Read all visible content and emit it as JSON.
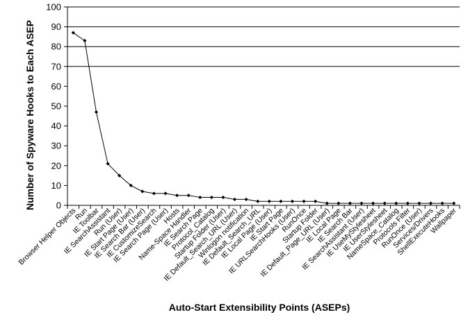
{
  "chart_data": {
    "type": "line",
    "title": "",
    "xlabel": "Auto-Start Extensibility Points (ASEPs)",
    "ylabel": "Number of Spyware Hooks to Each ASEP",
    "ylim": [
      0,
      100
    ],
    "yticks": [
      0,
      10,
      20,
      30,
      40,
      50,
      60,
      70,
      80,
      90,
      100
    ],
    "grid": "horizontal gridlines at 70, 80, 90, 100",
    "legend": "none",
    "colors": {
      "line": "#000000",
      "marker": "#000000"
    },
    "categories": [
      "Browser Helper Objects",
      "Run",
      "IE Toolbar",
      "IE SearchAssistant",
      "Run (User)",
      "IE Start Page (User)",
      "IE Search Bar (User)",
      "IE CustomizeSearch",
      "IE Search Page (User)",
      "Hosts",
      "Name-Space Handler",
      "IE Search Page",
      "Protocol_Catalog",
      "Startup Folder (User)",
      "IE Default_Search_URL (User)",
      "Winlogon notification",
      "IE Default_Search_URL",
      "IE Local Page (User)",
      "IE Start Page",
      "IE URLSearchHooks (User)",
      "RunOnce",
      "Startup Folder",
      "IE Default_Page_URL (User)",
      "IE Local Page",
      "IE Search Bar",
      "IE SearchAssistant (User)",
      "IE UseMyStylesheet",
      "IE UserStylesheet",
      "NameSpace_Catalog",
      "Protocols Filter",
      "RunOnce (User)",
      "Services/Drivers",
      "ShellExecuteHooks",
      "Wallpaper"
    ],
    "series": [
      {
        "values": [
          87,
          83,
          47,
          21,
          15,
          10,
          7,
          6,
          6,
          5,
          5,
          4,
          4,
          4,
          3,
          3,
          2,
          2,
          2,
          2,
          2,
          2,
          1,
          1,
          1,
          1,
          1,
          1,
          1,
          1,
          1,
          1,
          1,
          1
        ]
      }
    ]
  }
}
